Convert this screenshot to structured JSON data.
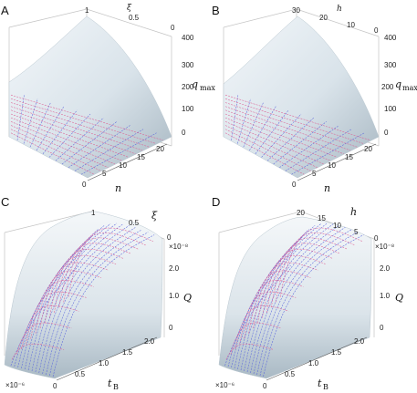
{
  "chart_data": [
    {
      "panel": "A",
      "type": "surface",
      "x_label": "n",
      "x_ticks": [
        "0",
        "5",
        "10",
        "15",
        "20"
      ],
      "x_range": [
        0,
        20
      ],
      "y_label": "ξ",
      "y_ticks": [
        "1",
        "0.5",
        "0"
      ],
      "y_range": [
        0,
        1
      ],
      "z_label": "q",
      "z_label_sub": "max",
      "z_ticks": [
        "0",
        "100",
        "200",
        "300",
        "400"
      ],
      "z_range": [
        0,
        400
      ],
      "peak_value": 400
    },
    {
      "panel": "B",
      "type": "surface",
      "x_label": "n",
      "x_ticks": [
        "0",
        "5",
        "10",
        "15",
        "20"
      ],
      "x_range": [
        0,
        20
      ],
      "y_label": "h",
      "y_ticks": [
        "30",
        "20",
        "10",
        "0"
      ],
      "y_range": [
        0,
        30
      ],
      "z_label": "q",
      "z_label_sub": "max",
      "z_ticks": [
        "0",
        "100",
        "200",
        "300",
        "400"
      ],
      "z_range": [
        0,
        400
      ],
      "peak_value": 400
    },
    {
      "panel": "C",
      "type": "surface",
      "x_label": "t",
      "x_label_sub": "B",
      "x_ticks": [
        "0",
        "0.5",
        "1.0",
        "1.5",
        "2.0"
      ],
      "x_range": [
        0,
        2.0
      ],
      "x_multiplier": "×10⁻⁶",
      "y_label": "ξ",
      "y_ticks": [
        "1",
        "0.5",
        "0"
      ],
      "y_range": [
        0,
        1
      ],
      "z_label": "Q",
      "z_ticks": [
        "0",
        "1.0",
        "2.0"
      ],
      "z_range": [
        0,
        2.8
      ],
      "z_multiplier": "×10⁻⁸",
      "peak_value": 2.8
    },
    {
      "panel": "D",
      "type": "surface",
      "x_label": "t",
      "x_label_sub": "B",
      "x_ticks": [
        "0",
        "0.5",
        "1.0",
        "1.5",
        "2.0"
      ],
      "x_range": [
        0,
        2.0
      ],
      "x_multiplier": "×10⁻⁶",
      "y_label": "h",
      "y_ticks": [
        "20",
        "15",
        "10",
        "5",
        "0"
      ],
      "y_range": [
        0,
        20
      ],
      "z_label": "Q",
      "z_ticks": [
        "0",
        "1.0",
        "2.0"
      ],
      "z_range": [
        0,
        2.8
      ],
      "z_multiplier": "×10⁻⁸",
      "peak_value": 2.8
    }
  ],
  "colors": {
    "surface_light": "#f1f6f9",
    "surface_dark": "#9fb0bc",
    "grid_pink": "#dd5f93",
    "grid_blue": "#5a66dd",
    "box_line": "#c4c4c4",
    "text": "#222222"
  }
}
